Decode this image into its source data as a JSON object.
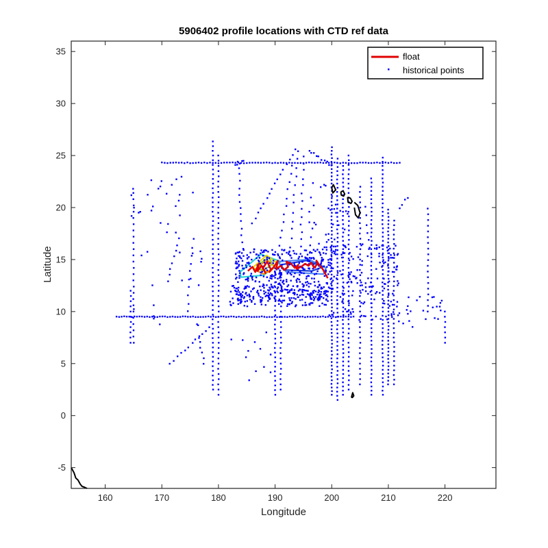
{
  "chart_data": {
    "type": "scatter",
    "title": "5906402 profile locations with CTD ref data",
    "xlabel": "Longitude",
    "ylabel": "Latitude",
    "xlim": [
      154,
      229
    ],
    "ylim": [
      -7,
      36
    ],
    "xticks": [
      160,
      170,
      180,
      190,
      200,
      210,
      220
    ],
    "yticks": [
      -5,
      0,
      5,
      10,
      15,
      20,
      25,
      30,
      35
    ],
    "grid": false,
    "legend": {
      "position": "top-right",
      "entries": [
        "float",
        "historical points"
      ]
    },
    "colors": {
      "float": "#e00000",
      "historical": "#0000ff",
      "coast": "#000000"
    },
    "series": [
      {
        "name": "float",
        "type": "line",
        "x": [
          185.2,
          186.0,
          186.5,
          187.1,
          186.9,
          187.6,
          188.3,
          187.9,
          188.6,
          189.3,
          189.0,
          189.8,
          190.5,
          190.2,
          191.0,
          191.6,
          192.3,
          192.0,
          192.8,
          193.5,
          194.1,
          193.8,
          194.6,
          195.3,
          195.9,
          196.4,
          196.9,
          197.5,
          197.3,
          197.9,
          198.4,
          198.9,
          199.3
        ],
        "y": [
          13.9,
          14.3,
          13.8,
          14.6,
          13.9,
          14.4,
          13.7,
          14.2,
          14.8,
          14.0,
          13.8,
          14.3,
          14.9,
          14.1,
          14.4,
          14.0,
          14.3,
          14.8,
          14.6,
          14.2,
          14.5,
          14.1,
          14.3,
          14.6,
          14.4,
          14.7,
          14.2,
          14.6,
          14.9,
          14.4,
          14.1,
          13.6,
          13.2
        ]
      },
      {
        "name": "historical points",
        "type": "scatter",
        "groups": [
          {
            "kind": "h",
            "y": 9.5,
            "x0": 162,
            "x1": 204,
            "step": 0.45
          },
          {
            "kind": "h",
            "y": 24.3,
            "x0": 170,
            "x1": 212,
            "step": 0.5
          },
          {
            "kind": "v",
            "x": 179.0,
            "y0": 2.5,
            "y1": 26.5,
            "step": 0.45
          },
          {
            "kind": "v",
            "x": 180.0,
            "y0": 2.0,
            "y1": 25.0,
            "step": 0.5
          },
          {
            "kind": "v",
            "x": 190.0,
            "y0": 2.0,
            "y1": 14.5,
            "step": 0.45
          },
          {
            "kind": "v",
            "x": 191.0,
            "y0": 2.5,
            "y1": 13.5,
            "step": 0.5
          },
          {
            "kind": "v",
            "x": 200.0,
            "y0": 2.0,
            "y1": 26.0,
            "step": 0.35
          },
          {
            "kind": "v",
            "x": 201.0,
            "y0": 1.5,
            "y1": 25.0,
            "step": 0.4
          },
          {
            "kind": "v",
            "x": 202.0,
            "y0": 2.0,
            "y1": 24.0,
            "step": 0.4
          },
          {
            "kind": "v",
            "x": 203.0,
            "y0": 2.5,
            "y1": 25.0,
            "step": 0.45
          },
          {
            "kind": "v",
            "x": 205.0,
            "y0": 3.0,
            "y1": 22.0,
            "step": 0.5
          },
          {
            "kind": "v",
            "x": 207.0,
            "y0": 2.0,
            "y1": 23.0,
            "step": 0.4
          },
          {
            "kind": "v",
            "x": 209.0,
            "y0": 2.0,
            "y1": 25.0,
            "step": 0.4
          },
          {
            "kind": "v",
            "x": 210.0,
            "y0": 3.0,
            "y1": 20.0,
            "step": 0.35
          },
          {
            "kind": "v",
            "x": 211.0,
            "y0": 3.0,
            "y1": 19.0,
            "step": 0.45
          },
          {
            "kind": "v",
            "x": 164.5,
            "y0": 7.0,
            "y1": 12.0,
            "step": 0.5
          },
          {
            "kind": "v",
            "x": 165.0,
            "y0": 7.0,
            "y1": 21.5,
            "step": 0.6
          },
          {
            "kind": "v",
            "x": 217.0,
            "y0": 10.0,
            "y1": 20.0,
            "step": 0.55
          },
          {
            "kind": "v",
            "x": 220.0,
            "y0": 7.0,
            "y1": 10.0,
            "step": 0.5
          },
          {
            "kind": "seg",
            "x0": 183.5,
            "y0": 24.5,
            "x1": 184.5,
            "y1": 13.5,
            "n": 18
          },
          {
            "kind": "seg",
            "x0": 193.5,
            "y0": 25.5,
            "x1": 186.0,
            "y1": 18.5,
            "n": 16
          },
          {
            "kind": "seg",
            "x0": 195.0,
            "y0": 25.0,
            "x1": 194.5,
            "y1": 15.5,
            "n": 14
          },
          {
            "kind": "seg",
            "x0": 194.0,
            "y0": 25.5,
            "x1": 192.5,
            "y1": 14.5,
            "n": 14
          },
          {
            "kind": "seg",
            "x0": 193.0,
            "y0": 24.0,
            "x1": 190.5,
            "y1": 15.5,
            "n": 12
          },
          {
            "kind": "seg",
            "x0": 196.0,
            "y0": 25.5,
            "x1": 200.0,
            "y1": 24.0,
            "n": 10
          },
          {
            "kind": "seg",
            "x0": 173.0,
            "y0": 17.0,
            "x1": 171.0,
            "y1": 13.0,
            "n": 8
          },
          {
            "kind": "seg",
            "x0": 175.5,
            "y0": 17.0,
            "x1": 174.5,
            "y1": 10.0,
            "n": 10
          },
          {
            "kind": "seg",
            "x0": 178.5,
            "y0": 8.5,
            "x1": 171.5,
            "y1": 5.0,
            "n": 12
          },
          {
            "kind": "seg",
            "x0": 176.5,
            "y0": 7.5,
            "x1": 177.5,
            "y1": 5.0,
            "n": 6
          },
          {
            "kind": "seg",
            "x0": 184.5,
            "y0": 24.5,
            "x1": 183.0,
            "y1": 24.0,
            "n": 5
          },
          {
            "kind": "seg",
            "x0": 196.5,
            "y0": 18.0,
            "x1": 195.5,
            "y1": 12.5,
            "n": 8
          },
          {
            "kind": "seg",
            "x0": 213.5,
            "y0": 21.0,
            "x1": 212.0,
            "y1": 20.0,
            "n": 4
          },
          {
            "kind": "seg",
            "x0": 206.0,
            "y0": 20.0,
            "x1": 206.5,
            "y1": 16.0,
            "n": 6
          },
          {
            "kind": "box",
            "x0": 183.0,
            "y0": 11.0,
            "x1": 200.0,
            "y1": 16.0,
            "n": 420
          },
          {
            "kind": "box",
            "x0": 182.0,
            "y0": 10.5,
            "x1": 199.0,
            "y1": 12.5,
            "n": 140
          },
          {
            "kind": "box",
            "x0": 198.5,
            "y0": 9.0,
            "x1": 212.0,
            "y1": 16.5,
            "n": 180
          },
          {
            "kind": "box",
            "x0": 164.0,
            "y0": 17.5,
            "x1": 176.0,
            "y1": 23.0,
            "n": 26
          },
          {
            "kind": "box",
            "x0": 165.0,
            "y0": 8.5,
            "x1": 178.0,
            "y1": 16.0,
            "n": 18
          },
          {
            "kind": "box",
            "x0": 212.5,
            "y0": 8.5,
            "x1": 219.5,
            "y1": 11.5,
            "n": 22
          },
          {
            "kind": "box",
            "x0": 181.0,
            "y0": 3.0,
            "x1": 189.5,
            "y1": 8.0,
            "n": 12
          },
          {
            "kind": "box",
            "x0": 196.0,
            "y0": 15.5,
            "x1": 203.0,
            "y1": 22.5,
            "n": 30
          }
        ]
      },
      {
        "name": "coastline",
        "type": "line",
        "paths": [
          {
            "x": [
              200.0,
              200.3,
              200.7,
              200.2,
              200.0
            ],
            "y": [
              21.9,
              22.2,
              21.7,
              21.4,
              21.9
            ]
          },
          {
            "x": [
              201.6,
              202.0,
              202.3,
              202.1,
              201.7,
              201.6
            ],
            "y": [
              21.5,
              21.6,
              21.3,
              21.1,
              21.2,
              21.5
            ]
          },
          {
            "x": [
              202.8,
              203.3,
              203.6,
              203.4,
              202.9,
              202.8
            ],
            "y": [
              21.0,
              20.9,
              20.6,
              20.4,
              20.5,
              21.0
            ]
          },
          {
            "x": [
              204.0,
              204.6,
              205.0,
              204.7,
              204.2,
              204.0
            ],
            "y": [
              20.5,
              20.2,
              19.5,
              19.0,
              19.3,
              20.0
            ]
          },
          {
            "x": [
              203.6,
              203.9,
              203.7,
              203.5,
              203.6
            ],
            "y": [
              1.7,
              1.9,
              2.2,
              1.8,
              1.7
            ]
          },
          {
            "x": [
              154.0,
              154.5,
              154.8,
              155.2,
              155.6,
              155.9,
              156.4,
              156.8
            ],
            "y": [
              -5.0,
              -5.5,
              -6.0,
              -6.2,
              -6.6,
              -6.8,
              -6.9,
              -7.0
            ]
          }
        ]
      }
    ],
    "contours": [
      {
        "color": "#27d6d6",
        "x": [
          183.8,
          187.5,
          191.0,
          188.0,
          184.0,
          183.8
        ],
        "y": [
          13.8,
          15.5,
          14.8,
          13.5,
          13.3,
          13.8
        ]
      },
      {
        "color": "#4f86f7",
        "x": [
          190.5,
          196.0,
          199.0,
          198.5,
          192.0,
          190.5
        ],
        "y": [
          14.8,
          15.0,
          14.2,
          13.6,
          13.8,
          14.8
        ]
      },
      {
        "color": "#1a3fd4",
        "x": [
          191.0,
          195.5,
          198.5,
          196.5,
          191.5,
          191.0
        ],
        "y": [
          14.5,
          14.9,
          14.3,
          13.9,
          14.0,
          14.5
        ]
      },
      {
        "color": "#f2d600",
        "x": [
          186.0,
          188.5,
          190.5,
          189.0,
          186.0
        ],
        "y": [
          14.2,
          15.4,
          14.6,
          13.8,
          14.2
        ]
      },
      {
        "color": "#ff8c00",
        "x": [
          186.5,
          188.5,
          190.0,
          188.0,
          186.5
        ],
        "y": [
          14.0,
          15.0,
          14.3,
          13.6,
          14.0
        ]
      },
      {
        "color": "#9acd32",
        "x": [
          186.8,
          188.8,
          189.6,
          187.8,
          186.8
        ],
        "y": [
          14.4,
          15.2,
          14.6,
          13.9,
          14.4
        ]
      }
    ]
  }
}
